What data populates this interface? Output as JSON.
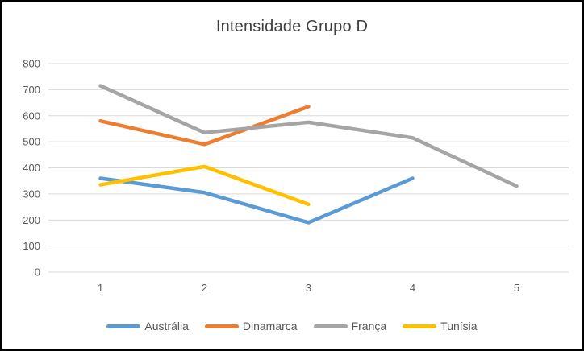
{
  "title": "Intensidade Grupo D",
  "chart_data": {
    "type": "line",
    "title": "Intensidade Grupo D",
    "categories": [
      "1",
      "2",
      "3",
      "4",
      "5"
    ],
    "series": [
      {
        "name": "Austrália",
        "color": "#5B9BD5",
        "values": [
          360,
          305,
          190,
          360,
          null
        ]
      },
      {
        "name": "Dinamarca",
        "color": "#ED7D31",
        "values": [
          580,
          490,
          635,
          null,
          null
        ]
      },
      {
        "name": "França",
        "color": "#A5A5A5",
        "values": [
          715,
          535,
          575,
          515,
          330
        ]
      },
      {
        "name": "Tunísia",
        "color": "#FFC000",
        "values": [
          335,
          405,
          260,
          null,
          null
        ]
      }
    ],
    "ylim": [
      0,
      800
    ],
    "yticks": [
      0,
      100,
      200,
      300,
      400,
      500,
      600,
      700,
      800
    ],
    "grid": true,
    "gridline_color": "#D9D9D9",
    "legend_position": "bottom",
    "xlabel": "",
    "ylabel": ""
  }
}
